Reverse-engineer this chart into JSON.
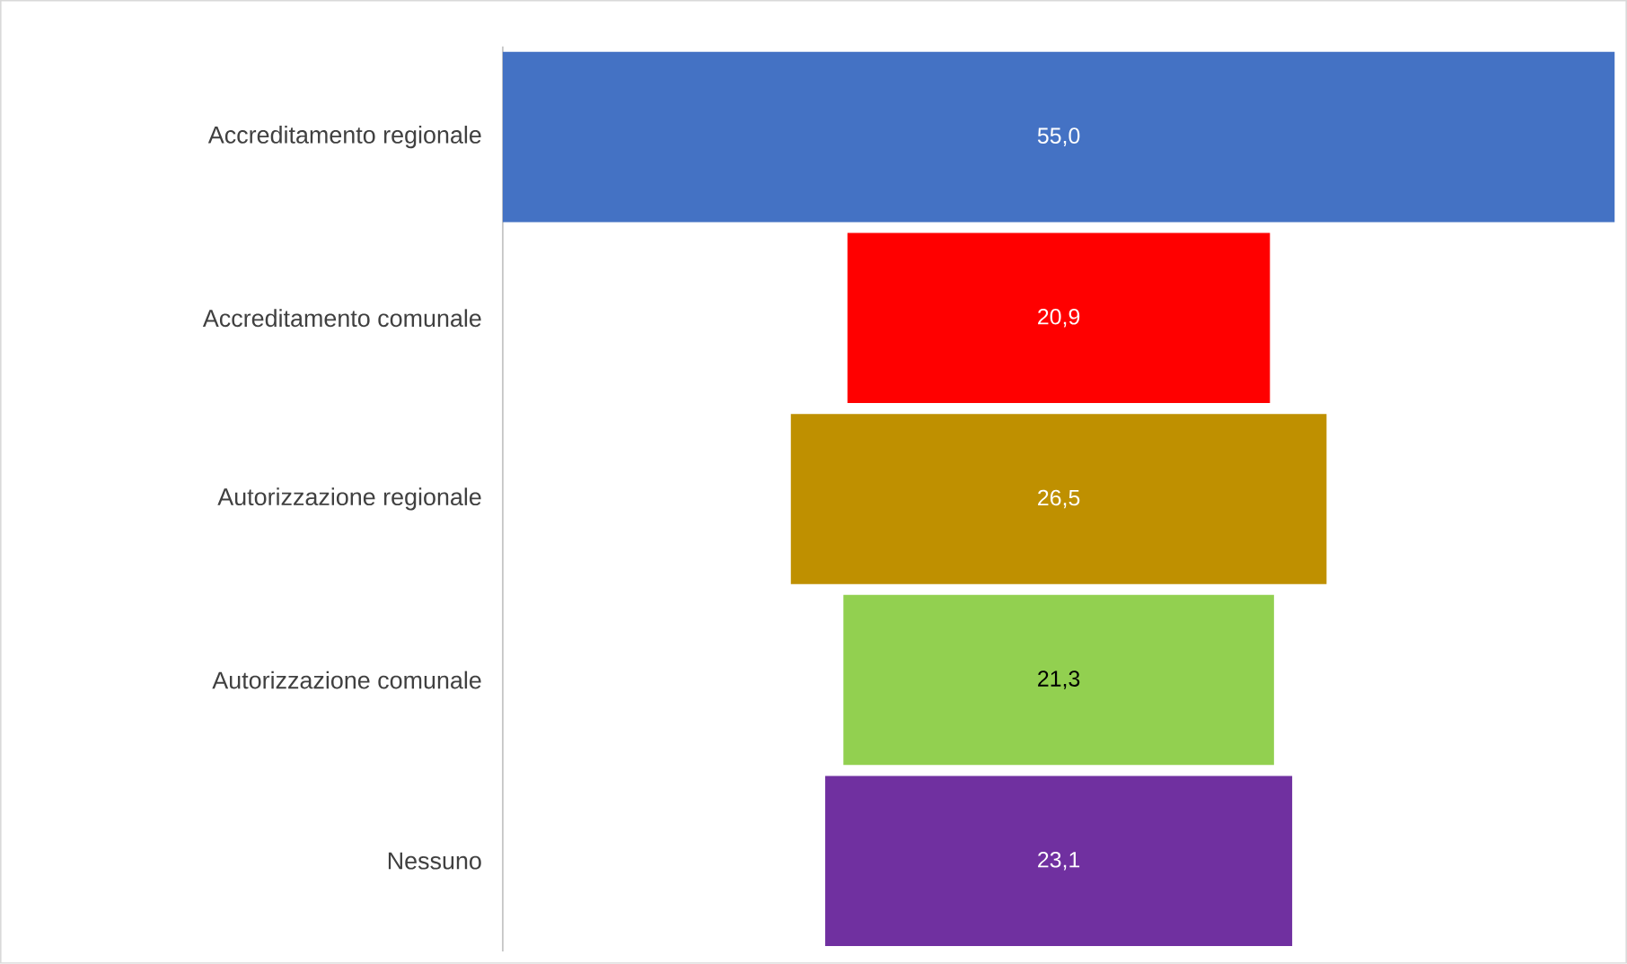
{
  "chart_data": {
    "type": "other",
    "categories": [
      "Accreditamento regionale",
      "Accreditamento comunale",
      "Autorizzazione regionale",
      "Autorizzazione comunale",
      "Nessuno"
    ],
    "values": [
      55.0,
      20.9,
      26.5,
      21.3,
      23.1
    ],
    "value_labels": [
      "55,0",
      "20,9",
      "26,5",
      "21,3",
      "23,1"
    ],
    "colors": [
      "#4472c4",
      "#ff0000",
      "#bf9000",
      "#92d050",
      "#7030a0"
    ]
  }
}
